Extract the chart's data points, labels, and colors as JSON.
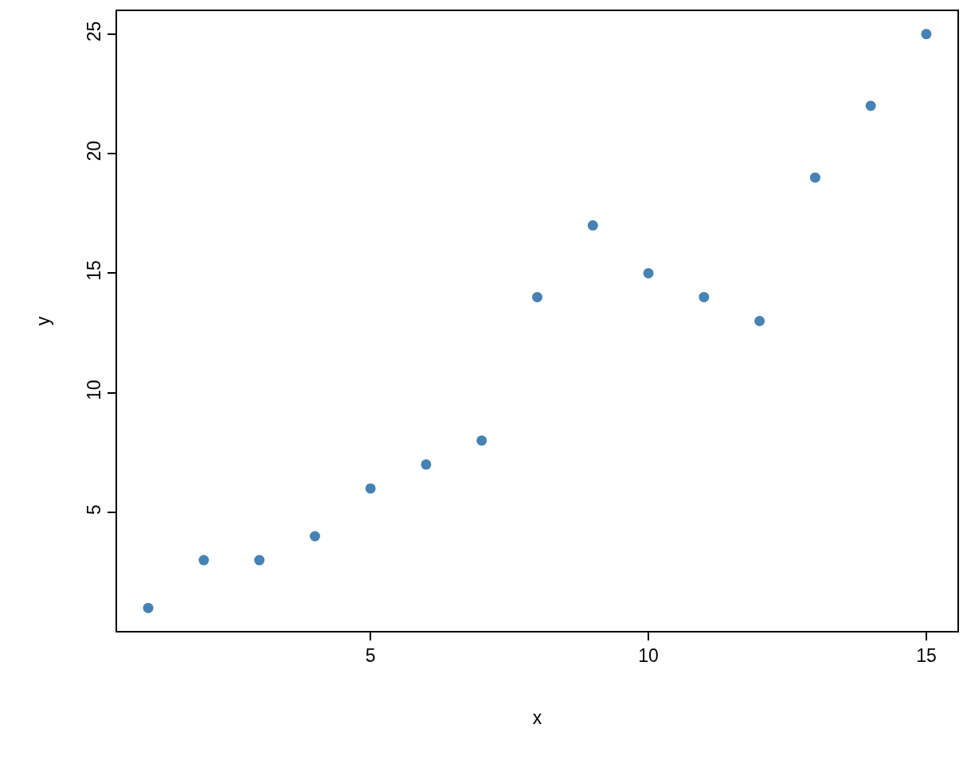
{
  "chart_data": {
    "type": "scatter",
    "xlabel": "x",
    "ylabel": "y",
    "x": [
      1,
      2,
      3,
      4,
      5,
      6,
      7,
      8,
      9,
      10,
      11,
      12,
      13,
      14,
      15
    ],
    "values": [
      1,
      3,
      3,
      4,
      6,
      7,
      8,
      14,
      17,
      15,
      14,
      13,
      19,
      22,
      25
    ],
    "color": "#4682b4",
    "marker": "circle",
    "xlim": [
      0.44,
      15.56
    ],
    "ylim": [
      0.04,
      25.96
    ],
    "xticks": [
      5,
      10,
      15
    ],
    "yticks": [
      5,
      10,
      15,
      20,
      25
    ]
  }
}
